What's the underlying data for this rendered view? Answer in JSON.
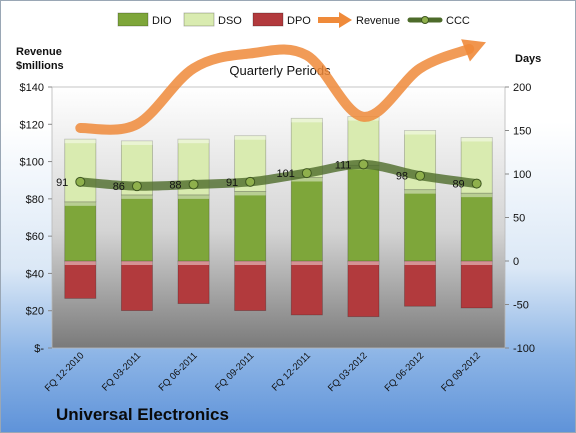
{
  "chart_data": {
    "type": "bar",
    "title": "Quarterly Periods",
    "company": "Universal Electronics",
    "y_left_label": "Revenue\n$millions",
    "y_right_label": "Days",
    "y_left_ticks": [
      "$-",
      "$20",
      "$40",
      "$60",
      "$80",
      "$100",
      "$120",
      "$140"
    ],
    "y_left_range": [
      0,
      140
    ],
    "y_right_ticks": [
      "-100",
      "-50",
      "0",
      "50",
      "100",
      "150",
      "200"
    ],
    "y_right_range": [
      -100,
      200
    ],
    "legend_position": "top",
    "categories": [
      "FQ 12-2010",
      "FQ 03-2011",
      "FQ 06-2011",
      "FQ 09-2011",
      "FQ 12-2011",
      "FQ 03-2012",
      "FQ 06-2012",
      "FQ 09-2012"
    ],
    "series": [
      {
        "name": "DIO",
        "axis": "days",
        "color": "#7ea63a",
        "values": [
          68,
          76,
          76,
          80,
          96,
          110,
          82,
          78
        ]
      },
      {
        "name": "DSO",
        "axis": "days",
        "color": "#d9ebb0",
        "values": [
          72,
          62,
          64,
          64,
          68,
          56,
          68,
          64
        ]
      },
      {
        "name": "DPO",
        "axis": "days",
        "color": "#b23a3d",
        "values": [
          -43,
          -57,
          -49,
          -57,
          -62,
          -64,
          -52,
          -54
        ]
      },
      {
        "name": "Revenue",
        "axis": "revenue",
        "color": "#ef8a3a",
        "values": [
          118,
          120,
          150,
          158,
          157,
          124,
          150,
          162
        ]
      },
      {
        "name": "CCC",
        "axis": "days",
        "color": "#4d6b2a",
        "values": [
          91,
          86,
          88,
          91,
          101,
          111,
          98,
          89
        ]
      }
    ],
    "ccc_labels": [
      "91",
      "86",
      "88",
      "91",
      "101",
      "111",
      "98",
      "89"
    ]
  }
}
